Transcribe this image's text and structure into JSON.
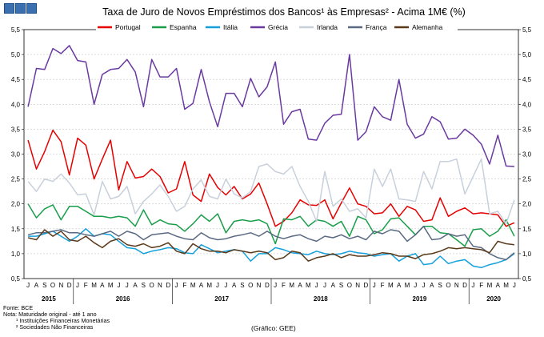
{
  "header": {
    "logo_name": "bce-logo"
  },
  "chart_data": {
    "type": "line",
    "title": "Taxa de Juro de Novos Empréstimos dos Bancos¹ às Empresas² - Acima 1M€ (%)",
    "xlabel": "",
    "ylabel": "",
    "ylim": [
      0.5,
      5.5
    ],
    "yticks": [
      "0,5",
      "1,0",
      "1,5",
      "2,0",
      "2,5",
      "3,0",
      "3,5",
      "4,0",
      "4,5",
      "5,0",
      "5,5"
    ],
    "grid": true,
    "legend_position": "top",
    "month_labels": [
      "J",
      "A",
      "S",
      "O",
      "N",
      "D",
      "J",
      "F",
      "M",
      "A",
      "M",
      "J",
      "J",
      "A",
      "S",
      "O",
      "N",
      "D",
      "J",
      "F",
      "M",
      "A",
      "M",
      "J",
      "J",
      "A",
      "S",
      "O",
      "N",
      "D",
      "J",
      "F",
      "M",
      "A",
      "M",
      "J",
      "J",
      "A",
      "S",
      "O",
      "N",
      "D",
      "J",
      "F",
      "M",
      "A",
      "M",
      "J",
      "J",
      "A",
      "S",
      "O",
      "N",
      "D",
      "J",
      "F",
      "M",
      "A",
      "M",
      "J"
    ],
    "year_labels": [
      {
        "label": "2015",
        "start": 0,
        "end": 5
      },
      {
        "label": "2016",
        "start": 6,
        "end": 17
      },
      {
        "label": "2017",
        "start": 18,
        "end": 29
      },
      {
        "label": "2018",
        "start": 30,
        "end": 41
      },
      {
        "label": "2019",
        "start": 42,
        "end": 53
      },
      {
        "label": "2020",
        "start": 54,
        "end": 59
      }
    ],
    "x_start": "2015-07",
    "x_end": "2020-06",
    "series": [
      {
        "name": "Portugal",
        "color": "#e60000",
        "values": [
          3.28,
          2.7,
          3.05,
          3.48,
          3.25,
          2.58,
          3.32,
          3.18,
          2.5,
          2.9,
          3.28,
          2.28,
          2.85,
          2.52,
          2.55,
          2.7,
          2.55,
          2.22,
          2.3,
          2.85,
          2.18,
          2.05,
          2.6,
          2.33,
          2.18,
          2.35,
          2.1,
          2.2,
          2.42,
          2.0,
          1.55,
          1.65,
          1.82,
          2.08,
          1.98,
          1.97,
          2.08,
          1.7,
          2.02,
          2.32,
          2.0,
          1.95,
          1.8,
          1.82,
          2.0,
          1.75,
          1.95,
          1.88,
          1.65,
          1.68,
          2.12,
          1.75,
          1.85,
          1.92,
          1.8,
          1.82,
          1.8,
          1.78,
          1.55,
          1.62
        ]
      },
      {
        "name": "Espanha",
        "color": "#1a9e4a",
        "values": [
          2.0,
          1.72,
          1.9,
          1.98,
          1.68,
          1.95,
          1.95,
          1.85,
          1.75,
          1.75,
          1.72,
          1.75,
          1.72,
          1.55,
          1.88,
          1.58,
          1.68,
          1.6,
          1.58,
          1.45,
          1.6,
          1.78,
          1.65,
          1.8,
          1.42,
          1.65,
          1.68,
          1.65,
          1.68,
          1.6,
          1.2,
          1.7,
          1.68,
          1.75,
          1.55,
          1.68,
          1.65,
          1.55,
          1.65,
          1.35,
          1.75,
          1.68,
          1.4,
          1.48,
          1.7,
          1.72,
          1.55,
          1.38,
          1.55,
          1.55,
          1.42,
          1.4,
          1.28,
          1.15,
          1.48,
          1.5,
          1.35,
          1.45,
          1.68,
          1.35
        ]
      },
      {
        "name": "Itália",
        "color": "#14a0dc",
        "values": [
          1.35,
          1.35,
          1.4,
          1.45,
          1.35,
          1.25,
          1.35,
          1.5,
          1.35,
          1.4,
          1.38,
          1.25,
          1.12,
          1.1,
          1.0,
          1.05,
          1.08,
          1.12,
          1.1,
          1.02,
          1.0,
          1.18,
          1.1,
          1.02,
          1.05,
          1.08,
          1.05,
          0.85,
          1.0,
          1.0,
          1.12,
          1.08,
          1.02,
          1.0,
          0.98,
          1.05,
          1.0,
          0.98,
          1.0,
          1.05,
          1.02,
          1.0,
          0.95,
          0.98,
          1.0,
          0.85,
          0.95,
          1.0,
          0.78,
          0.8,
          0.95,
          0.8,
          0.85,
          0.88,
          0.75,
          0.72,
          0.78,
          0.82,
          0.88,
          1.0
        ]
      },
      {
        "name": "Grécia",
        "color": "#6a3aa0",
        "values": [
          3.95,
          4.72,
          4.7,
          5.12,
          5.02,
          5.18,
          4.88,
          4.85,
          4.0,
          4.6,
          4.7,
          4.72,
          4.9,
          4.65,
          3.95,
          4.9,
          4.55,
          4.55,
          4.72,
          3.9,
          4.02,
          4.7,
          4.05,
          3.55,
          4.22,
          4.22,
          3.95,
          4.52,
          4.15,
          4.35,
          4.85,
          3.6,
          3.85,
          3.9,
          3.3,
          3.28,
          3.62,
          3.78,
          3.8,
          5.0,
          3.28,
          3.45,
          3.95,
          3.75,
          3.68,
          4.5,
          3.6,
          3.32,
          3.4,
          3.75,
          3.65,
          3.3,
          3.32,
          3.5,
          3.38,
          3.2,
          2.8,
          3.38,
          2.76,
          2.75
        ]
      },
      {
        "name": "Irlanda",
        "color": "#c8d0dc",
        "values": [
          2.45,
          2.25,
          2.5,
          2.45,
          2.6,
          2.42,
          2.18,
          2.2,
          1.78,
          2.45,
          2.1,
          2.15,
          2.35,
          1.8,
          2.05,
          2.2,
          2.38,
          2.15,
          1.85,
          1.95,
          2.3,
          2.48,
          2.15,
          2.1,
          2.5,
          2.2,
          2.12,
          2.25,
          2.75,
          2.8,
          2.65,
          2.6,
          2.75,
          2.35,
          2.05,
          1.65,
          2.65,
          1.95,
          2.1,
          1.85,
          1.9,
          1.72,
          2.7,
          2.35,
          2.7,
          2.1,
          2.08,
          2.05,
          2.65,
          2.3,
          2.85,
          2.85,
          2.9,
          2.2,
          2.55,
          2.9,
          1.8,
          1.85,
          1.6,
          2.08
        ]
      },
      {
        "name": "França",
        "color": "#5a6a82",
        "values": [
          1.38,
          1.42,
          1.42,
          1.45,
          1.48,
          1.42,
          1.42,
          1.38,
          1.35,
          1.4,
          1.45,
          1.35,
          1.45,
          1.4,
          1.28,
          1.38,
          1.4,
          1.42,
          1.35,
          1.3,
          1.28,
          1.42,
          1.32,
          1.28,
          1.3,
          1.35,
          1.38,
          1.42,
          1.35,
          1.45,
          1.35,
          1.3,
          1.35,
          1.38,
          1.3,
          1.25,
          1.35,
          1.32,
          1.38,
          1.3,
          1.35,
          1.28,
          1.45,
          1.4,
          1.48,
          1.45,
          1.25,
          1.38,
          1.55,
          1.28,
          1.3,
          1.4,
          1.35,
          1.38,
          1.15,
          1.12,
          1.0,
          0.92,
          0.88,
          1.02
        ]
      },
      {
        "name": "Alemanha",
        "color": "#5a3a1a",
        "values": [
          1.32,
          1.28,
          1.48,
          1.35,
          1.45,
          1.28,
          1.25,
          1.35,
          1.22,
          1.12,
          1.25,
          1.3,
          1.18,
          1.15,
          1.2,
          1.12,
          1.15,
          1.22,
          1.05,
          1.0,
          1.2,
          1.1,
          1.05,
          1.05,
          1.02,
          1.08,
          1.05,
          1.02,
          1.05,
          1.02,
          0.88,
          0.92,
          1.05,
          1.02,
          0.85,
          0.92,
          0.95,
          1.0,
          0.92,
          0.98,
          0.95,
          0.95,
          0.98,
          1.02,
          1.0,
          0.95,
          0.95,
          0.9,
          0.98,
          1.0,
          1.05,
          1.12,
          1.1,
          1.12,
          1.1,
          1.08,
          1.02,
          1.25,
          1.2,
          1.18
        ]
      }
    ]
  },
  "notes": {
    "fonte": "Fonte: BCE",
    "nota": "Nota: Maturidade original - até 1 ano",
    "nota1": "¹ Instituições Financeiras Monetárias",
    "nota2": "² Sociedades Não Financeiras"
  },
  "credit": "(Gráfico: GEE)"
}
